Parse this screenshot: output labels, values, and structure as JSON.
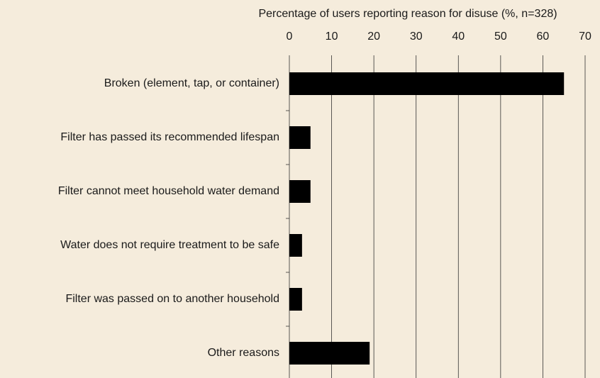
{
  "chart_data": {
    "type": "bar",
    "orientation": "horizontal",
    "x_label": "Percentage of users reporting reason for disuse (%, n=328)",
    "categories": [
      "Broken (element, tap, or container)",
      "Filter has passed its recommended lifespan",
      "Filter cannot meet household water demand",
      "Water does not require treatment to be safe",
      "Filter was passed on to another household",
      "Other reasons"
    ],
    "values": [
      65,
      5,
      5,
      3,
      3,
      19
    ],
    "color": "#000000",
    "xlim": [
      0,
      70
    ],
    "xticks": [
      0,
      10,
      20,
      30,
      40,
      50,
      60,
      70
    ],
    "grid": true
  }
}
